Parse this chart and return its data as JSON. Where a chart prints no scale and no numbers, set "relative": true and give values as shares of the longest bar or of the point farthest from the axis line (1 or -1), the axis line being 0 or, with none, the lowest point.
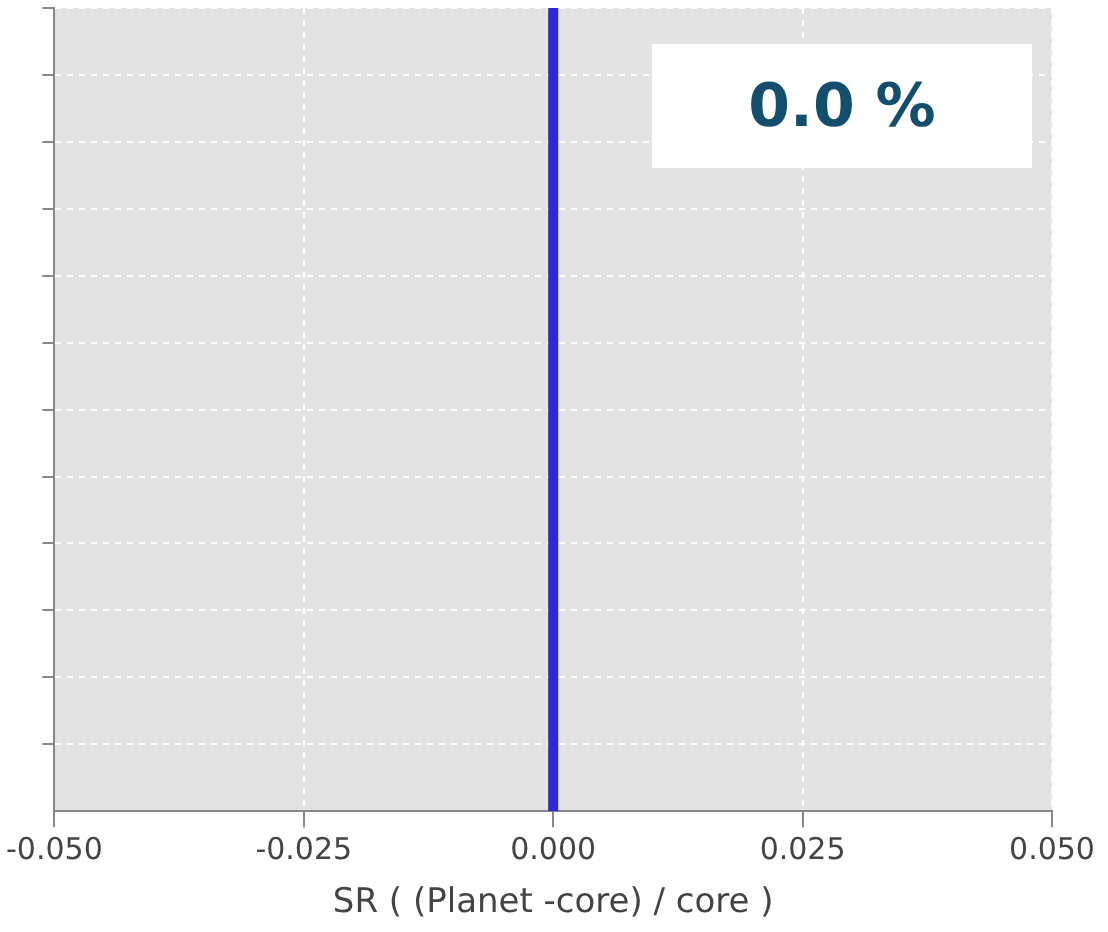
{
  "chart_data": {
    "type": "line",
    "xlabel": "SR ( (Planet -core) / core )",
    "annotations": [
      "0.0 %"
    ],
    "relative": true,
    "xlim": [
      -0.05,
      0.05
    ],
    "xticks": [
      {
        "value": -0.05,
        "label": "-0.050"
      },
      {
        "value": -0.025,
        "label": "-0.025"
      },
      {
        "value": 0,
        "label": "0.000"
      },
      {
        "value": 0.025,
        "label": "0.025"
      },
      {
        "value": 0.05,
        "label": "0.050"
      }
    ],
    "series": [
      {
        "color": "#2a2ad8",
        "x": [
          0,
          0
        ],
        "values": [
          0,
          1
        ]
      }
    ],
    "grid": true,
    "tick_labels": "x"
  }
}
